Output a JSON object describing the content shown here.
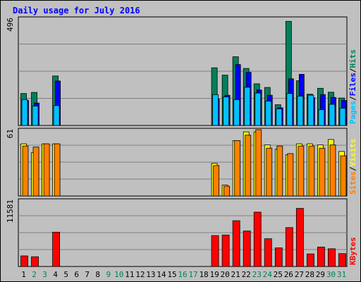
{
  "title": "Daily usage for July 2016",
  "colors": {
    "hits": "#00805c",
    "files": "#0000ff",
    "pages": "#00c0ff",
    "visits": "#ffff00",
    "sites": "#ff8000",
    "kbytes": "#ff0000",
    "weekend_day": "#00805c",
    "weekday_day": "#000000",
    "background": "#c0c0c0"
  },
  "chart_data": [
    {
      "type": "bar",
      "panel": "top",
      "ymax_label": "496",
      "ylim": [
        0,
        496
      ],
      "legend": [
        "Pages",
        "Files",
        "Hits"
      ],
      "legend_separator": "/",
      "categories": [
        "1",
        "2",
        "3",
        "4",
        "5",
        "6",
        "7",
        "8",
        "9",
        "10",
        "11",
        "12",
        "13",
        "14",
        "15",
        "16",
        "17",
        "18",
        "19",
        "20",
        "21",
        "22",
        "23",
        "24",
        "25",
        "26",
        "27",
        "28",
        "29",
        "30",
        "31"
      ],
      "series": [
        {
          "name": "Hits",
          "values": [
            148,
            153,
            0,
            229,
            0,
            0,
            0,
            0,
            0,
            0,
            0,
            0,
            0,
            0,
            0,
            0,
            0,
            0,
            267,
            233,
            318,
            264,
            193,
            176,
            96,
            482,
            207,
            145,
            172,
            154,
            127
          ]
        },
        {
          "name": "Files",
          "values": [
            116,
            104,
            0,
            206,
            0,
            0,
            0,
            0,
            0,
            0,
            0,
            0,
            0,
            0,
            0,
            0,
            0,
            0,
            123,
            140,
            282,
            246,
            164,
            140,
            82,
            216,
            237,
            129,
            143,
            130,
            116
          ]
        },
        {
          "name": "Pages",
          "values": [
            120,
            90,
            0,
            92,
            0,
            0,
            0,
            0,
            0,
            0,
            0,
            0,
            0,
            0,
            0,
            0,
            0,
            0,
            143,
            132,
            120,
            177,
            150,
            113,
            77,
            148,
            136,
            140,
            73,
            98,
            80
          ]
        }
      ]
    },
    {
      "type": "bar",
      "panel": "middle",
      "ymax_label": "61",
      "ylim": [
        0,
        61
      ],
      "legend": [
        "Sites",
        "Visits"
      ],
      "legend_separator": "/",
      "categories": [
        "1",
        "2",
        "3",
        "4",
        "5",
        "6",
        "7",
        "8",
        "9",
        "10",
        "11",
        "12",
        "13",
        "14",
        "15",
        "16",
        "17",
        "18",
        "19",
        "20",
        "21",
        "22",
        "23",
        "24",
        "25",
        "26",
        "27",
        "28",
        "29",
        "30",
        "31"
      ],
      "series": [
        {
          "name": "Visits",
          "values": [
            48,
            40,
            48,
            48,
            0,
            0,
            0,
            0,
            0,
            0,
            0,
            0,
            0,
            0,
            0,
            0,
            0,
            0,
            30,
            10,
            51,
            59,
            59,
            47,
            43,
            38,
            48,
            48,
            47,
            52,
            41
          ]
        },
        {
          "name": "Sites",
          "values": [
            46,
            45,
            48,
            48,
            0,
            0,
            0,
            0,
            0,
            0,
            0,
            0,
            0,
            0,
            0,
            0,
            0,
            0,
            28,
            9,
            51,
            56,
            61,
            44,
            46,
            39,
            46,
            46,
            44,
            47,
            37
          ]
        }
      ]
    },
    {
      "type": "bar",
      "panel": "bottom",
      "ymax_label": "11581",
      "ylim": [
        0,
        11581
      ],
      "legend": [
        "KBytes"
      ],
      "categories": [
        "1",
        "2",
        "3",
        "4",
        "5",
        "6",
        "7",
        "8",
        "9",
        "10",
        "11",
        "12",
        "13",
        "14",
        "15",
        "16",
        "17",
        "18",
        "19",
        "20",
        "21",
        "22",
        "23",
        "24",
        "25",
        "26",
        "27",
        "28",
        "29",
        "30",
        "31"
      ],
      "series": [
        {
          "name": "KBytes",
          "values": [
            1850,
            1700,
            0,
            6000,
            0,
            0,
            0,
            0,
            0,
            0,
            0,
            0,
            0,
            0,
            0,
            0,
            0,
            0,
            5400,
            5500,
            8000,
            6200,
            9500,
            4850,
            3250,
            6800,
            10150,
            2200,
            3400,
            3100,
            2250
          ]
        }
      ]
    }
  ],
  "days": {
    "labels": [
      "1",
      "2",
      "3",
      "4",
      "5",
      "6",
      "7",
      "8",
      "9",
      "10",
      "11",
      "12",
      "13",
      "14",
      "15",
      "16",
      "17",
      "18",
      "19",
      "20",
      "21",
      "22",
      "23",
      "24",
      "25",
      "26",
      "27",
      "28",
      "29",
      "30",
      "31"
    ],
    "weekend": [
      false,
      true,
      true,
      false,
      false,
      false,
      false,
      false,
      true,
      true,
      false,
      false,
      false,
      false,
      false,
      true,
      true,
      false,
      false,
      false,
      false,
      false,
      true,
      true,
      false,
      false,
      false,
      false,
      false,
      true,
      true
    ]
  }
}
